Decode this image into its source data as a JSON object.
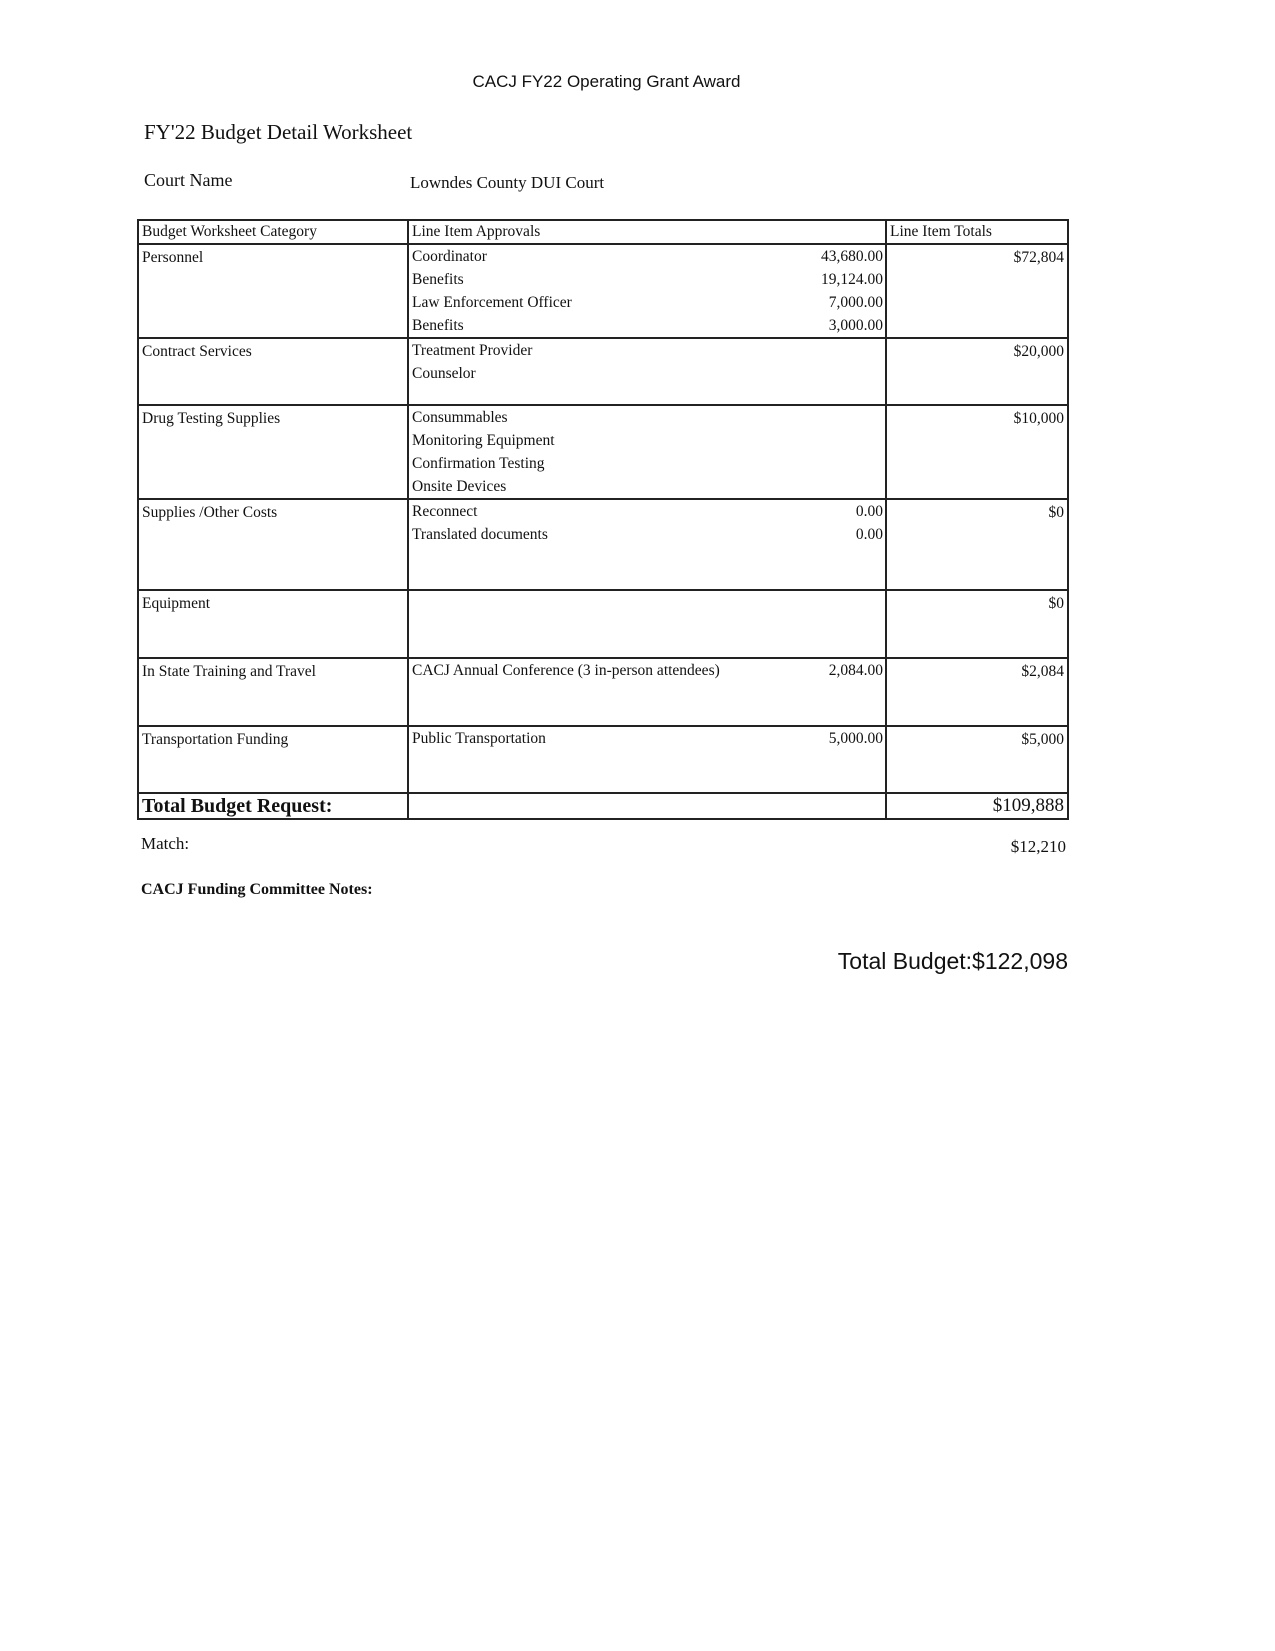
{
  "title": "CACJ FY22 Operating Grant Award",
  "subtitle": "FY'22  Budget Detail Worksheet",
  "court": {
    "label": "Court Name",
    "value": "Lowndes County DUI Court"
  },
  "table": {
    "headers": [
      "Budget Worksheet Category",
      "Line Item Approvals",
      "Line Item Totals"
    ],
    "rows": [
      {
        "category": "Personnel",
        "total": "$72,804",
        "items": [
          {
            "label": "Coordinator",
            "amount": "43,680.00"
          },
          {
            "label": "Benefits",
            "amount": "19,124.00"
          },
          {
            "label": "Law Enforcement Officer",
            "amount": "7,000.00"
          },
          {
            "label": "Benefits",
            "amount": "3,000.00"
          }
        ]
      },
      {
        "category": "Contract Services",
        "total": "$20,000",
        "items": [
          {
            "label": "Treatment Provider",
            "amount": ""
          },
          {
            "label": "Counselor",
            "amount": ""
          }
        ]
      },
      {
        "category": "Drug Testing Supplies",
        "total": "$10,000",
        "items": [
          {
            "label": "Consummables",
            "amount": ""
          },
          {
            "label": "Monitoring Equipment",
            "amount": ""
          },
          {
            "label": "Confirmation Testing",
            "amount": ""
          },
          {
            "label": "Onsite Devices",
            "amount": ""
          }
        ]
      },
      {
        "category": "Supplies /Other Costs",
        "total": "$0",
        "items": [
          {
            "label": "Reconnect",
            "amount": "0.00"
          },
          {
            "label": "Translated documents",
            "amount": "0.00"
          }
        ]
      },
      {
        "category": "Equipment",
        "total": "$0",
        "items": []
      },
      {
        "category": "In State Training and Travel",
        "total": "$2,084",
        "items": [
          {
            "label": "CACJ Annual Conference (3 in-person attendees)",
            "amount": "2,084.00"
          }
        ]
      },
      {
        "category": "Transportation Funding",
        "total": "$5,000",
        "items": [
          {
            "label": "Public Transportation",
            "amount": "5,000.00"
          }
        ]
      }
    ],
    "total_label": "Total Budget Request:",
    "total_value": "$109,888"
  },
  "match": {
    "label": "Match:",
    "value": "$12,210"
  },
  "notes_label": "CACJ Funding Committee Notes:",
  "total_budget": "Total Budget:$122,098"
}
